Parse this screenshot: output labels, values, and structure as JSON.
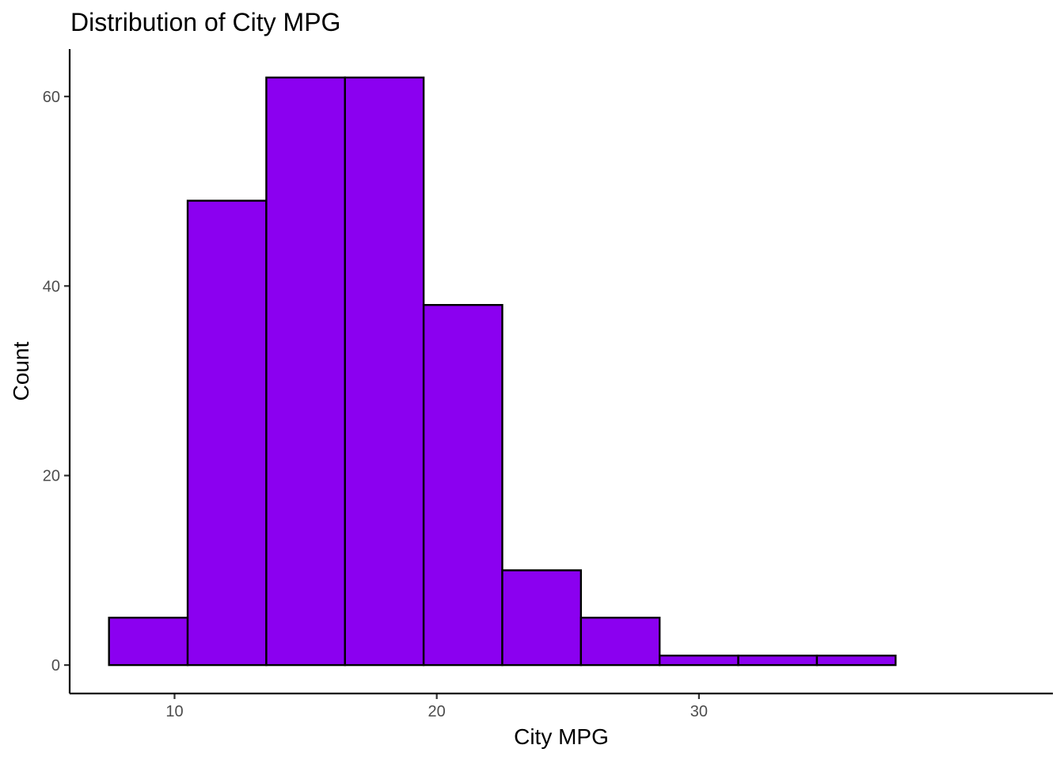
{
  "chart_data": {
    "type": "bar",
    "subtype": "histogram",
    "title": "Distribution of City MPG",
    "xlabel": "City MPG",
    "ylabel": "Count",
    "bins": [
      {
        "x0": 7.5,
        "x1": 10.5,
        "count": 5
      },
      {
        "x0": 10.5,
        "x1": 13.5,
        "count": 49
      },
      {
        "x0": 13.5,
        "x1": 16.5,
        "count": 62
      },
      {
        "x0": 16.5,
        "x1": 19.5,
        "count": 62
      },
      {
        "x0": 19.5,
        "x1": 22.5,
        "count": 38
      },
      {
        "x0": 22.5,
        "x1": 25.5,
        "count": 10
      },
      {
        "x0": 25.5,
        "x1": 28.5,
        "count": 5
      },
      {
        "x0": 28.5,
        "x1": 31.5,
        "count": 1
      },
      {
        "x0": 31.5,
        "x1": 34.5,
        "count": 1
      },
      {
        "x0": 34.5,
        "x1": 37.5,
        "count": 1
      }
    ],
    "xlim": [
      6,
      43.5
    ],
    "ylim": [
      -3,
      65
    ],
    "xticks": [
      10,
      20,
      30
    ],
    "yticks": [
      0,
      20,
      40,
      60
    ],
    "grid": false,
    "legend": "none",
    "colors": {
      "bar_fill": "#8B00F0",
      "bar_outline": "#000000",
      "axis": "#000000",
      "tick_label": "#4d4d4d"
    }
  }
}
